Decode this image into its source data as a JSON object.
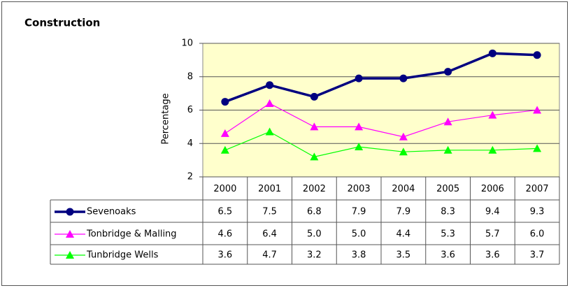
{
  "chart_data": {
    "type": "line",
    "title": "Construction",
    "y_label": "Percentage",
    "categories": [
      "2000",
      "2001",
      "2002",
      "2003",
      "2004",
      "2005",
      "2006",
      "2007"
    ],
    "ylim": [
      2,
      10
    ],
    "yticks": [
      2,
      4,
      6,
      8,
      10
    ],
    "grid": true,
    "series": [
      {
        "name": "Sevenoaks",
        "color": "#000080",
        "marker": "circle",
        "values": [
          6.5,
          7.5,
          6.8,
          7.9,
          7.9,
          8.3,
          9.4,
          9.3
        ],
        "value_labels": [
          "6.5",
          "7.5",
          "6.8",
          "7.9",
          "7.9",
          "8.3",
          "9.4",
          "9.3"
        ]
      },
      {
        "name": "Tonbridge & Malling",
        "color": "#ff00ff",
        "marker": "triangle",
        "values": [
          4.6,
          6.4,
          5,
          5,
          4.4,
          5.3,
          5.7,
          6
        ],
        "value_labels": [
          "4.6",
          "6.4",
          "5.0",
          "5.0",
          "4.4",
          "5.3",
          "5.7",
          "6.0"
        ]
      },
      {
        "name": "Tunbridge Wells",
        "color": "#00ff00",
        "marker": "triangle",
        "values": [
          3.6,
          4.7,
          3.2,
          3.8,
          3.5,
          3.6,
          3.6,
          3.7
        ],
        "value_labels": [
          "3.6",
          "4.7",
          "3.2",
          "3.8",
          "3.5",
          "3.6",
          "3.6",
          "3.7"
        ]
      }
    ]
  }
}
